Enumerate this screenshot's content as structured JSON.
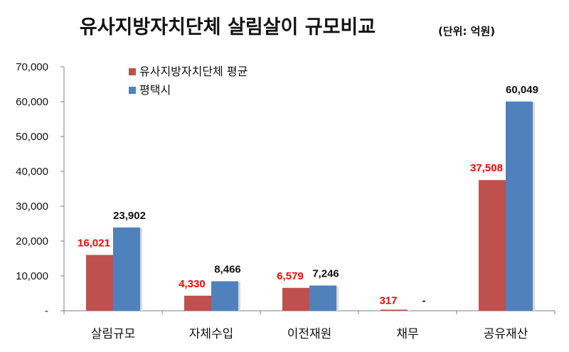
{
  "chart_data": {
    "type": "bar",
    "title": "유사지방자치단체 살림살이 규모비교",
    "unit": "(단위: 억원)",
    "categories": [
      "살림규모",
      "자체수입",
      "이전재원",
      "채무",
      "공유재산"
    ],
    "series": [
      {
        "name": "유사지방자치단체 평균",
        "color": "#c0504d",
        "label_color": "#ff0000",
        "values": [
          16021,
          4330,
          6579,
          317,
          37508
        ],
        "labels": [
          "16,021",
          "4,330",
          "6,579",
          "317",
          "37,508"
        ]
      },
      {
        "name": "평택시",
        "color": "#4f81bd",
        "label_color": "#111111",
        "values": [
          23902,
          8466,
          7246,
          null,
          60049
        ],
        "labels": [
          "23,902",
          "8,466",
          "7,246",
          "-",
          "60,049"
        ]
      }
    ],
    "ylim": [
      0,
      70000
    ],
    "yticks": [
      0,
      10000,
      20000,
      30000,
      40000,
      50000,
      60000,
      70000
    ],
    "ytick_labels": [
      "-",
      "10,000",
      "20,000",
      "30,000",
      "40,000",
      "50,000",
      "60,000",
      "70,000"
    ],
    "xlabel": "",
    "ylabel": "",
    "grid": false,
    "legend_position": "top-left"
  }
}
